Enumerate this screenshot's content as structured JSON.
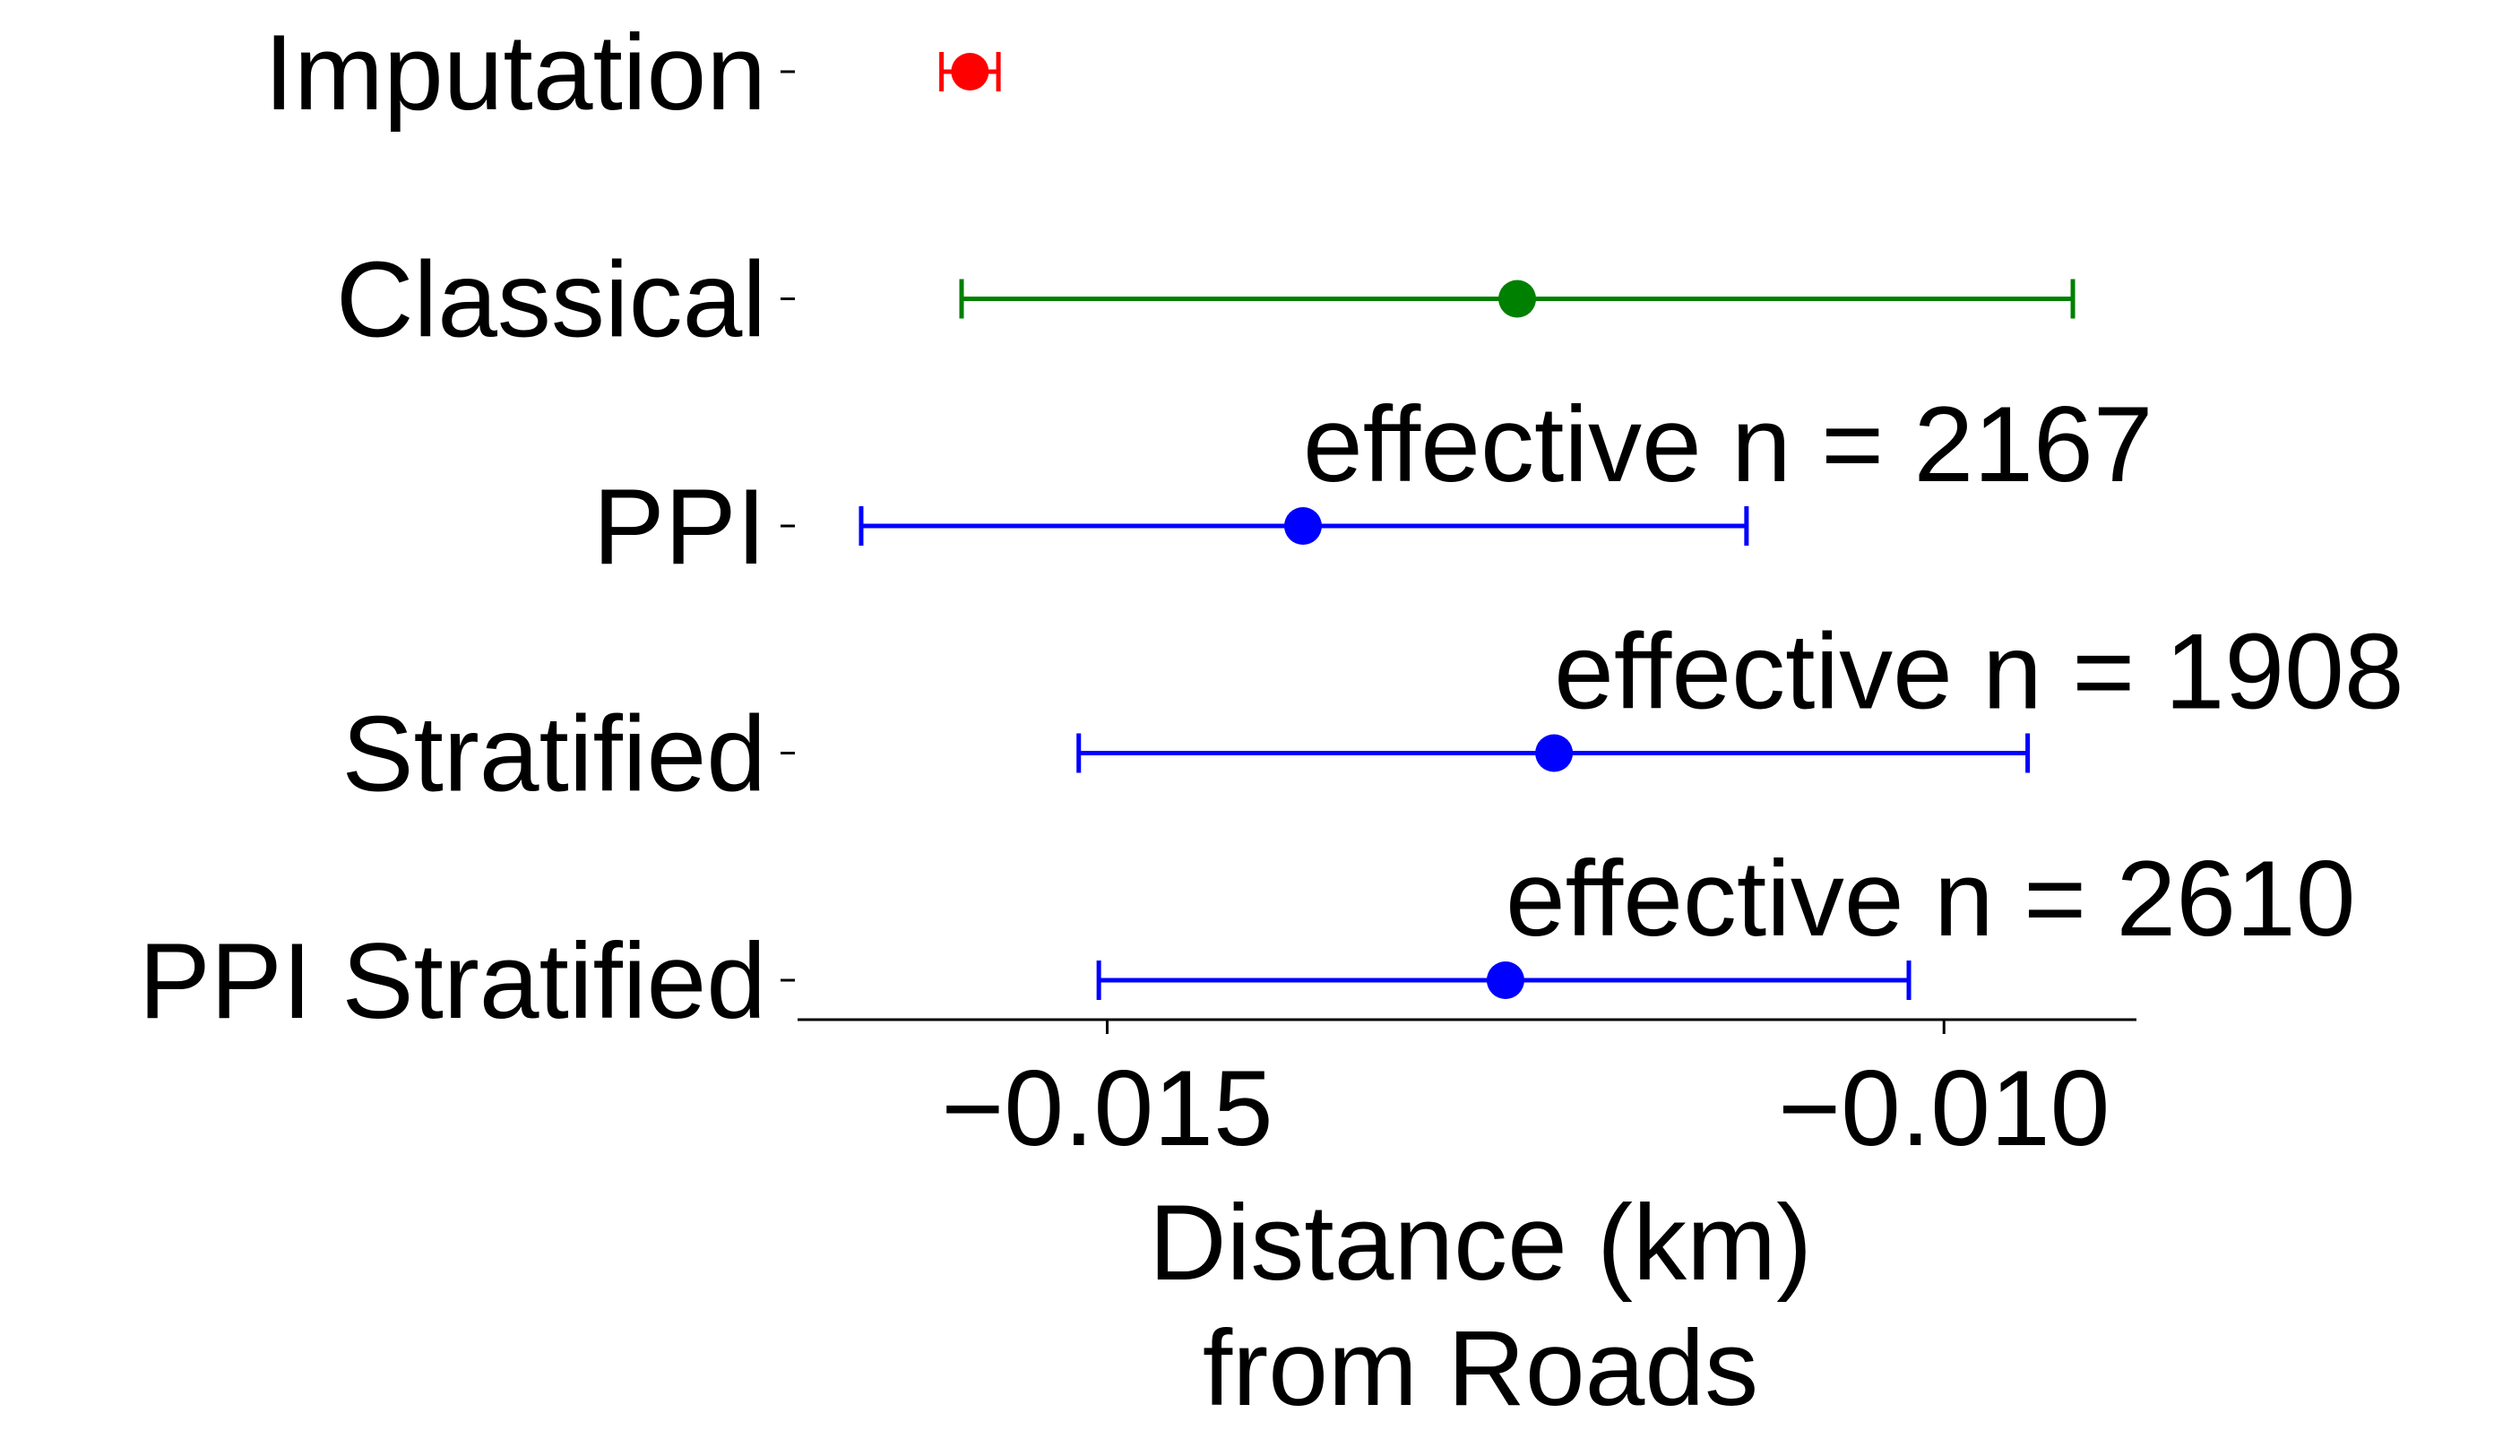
{
  "chart_data": {
    "type": "errorbar",
    "title": "",
    "xlabel": [
      "Distance (km)",
      "from Roads"
    ],
    "ylabel": "",
    "xlim": [
      -0.01685,
      -0.00885
    ],
    "xticks": [
      -0.015,
      -0.01
    ],
    "xtick_labels": [
      "−0.015",
      "−0.010"
    ],
    "grid": false,
    "legend": "none",
    "categories": [
      "Imputation",
      "Classical",
      "PPI",
      "Stratified",
      "PPI Stratified"
    ],
    "series": [
      {
        "category": "Imputation",
        "estimate": -0.01582,
        "lower": -0.01599,
        "upper": -0.01565,
        "color": "#ff0000",
        "annotation": ""
      },
      {
        "category": "Classical",
        "estimate": -0.01255,
        "lower": -0.01587,
        "upper": -0.00923,
        "color": "#008000",
        "annotation": ""
      },
      {
        "category": "PPI",
        "estimate": -0.01383,
        "lower": -0.01647,
        "upper": -0.01118,
        "color": "#0000ff",
        "annotation": "effective n = 2167"
      },
      {
        "category": "Stratified",
        "estimate": -0.01233,
        "lower": -0.01517,
        "upper": -0.0095,
        "color": "#0000ff",
        "annotation": "effective n = 1908"
      },
      {
        "category": "PPI Stratified",
        "estimate": -0.01262,
        "lower": -0.01505,
        "upper": -0.01021,
        "color": "#0000ff",
        "annotation": "effective n = 2610"
      }
    ]
  }
}
